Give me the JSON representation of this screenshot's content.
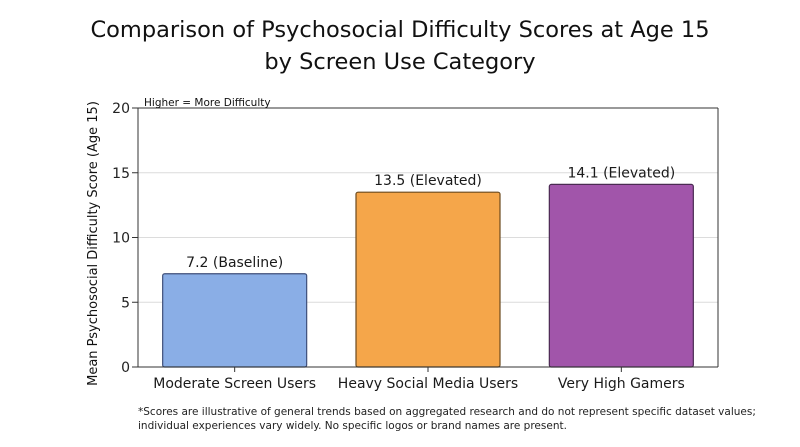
{
  "chart_data": {
    "type": "bar",
    "title_lines": [
      "Comparison of Psychosocial Difficulty Scores at Age 15",
      "by Screen Use Category"
    ],
    "xlabel": "",
    "ylabel": "Mean Psychosocial Difficulty Score (Age 15)",
    "ylim": [
      0,
      20
    ],
    "yticks": [
      0,
      5,
      10,
      15,
      20
    ],
    "grid": true,
    "annotation": "Higher = More Difficulty",
    "categories": [
      "Moderate Screen Users",
      "Heavy Social Media Users",
      "Very High Gamers"
    ],
    "values": [
      7.2,
      13.5,
      14.1
    ],
    "data_labels": [
      "7.2 (Baseline)",
      "13.5 (Elevated)",
      "14.1 (Elevated)"
    ],
    "colors": [
      "#8aaee6",
      "#f5a64a",
      "#a155aa"
    ],
    "edge_colors": [
      "#3e4f7a",
      "#6b4a1e",
      "#4a2a52"
    ],
    "footnote_lines": [
      "*Scores are illustrative of general trends based on aggregated research and do not represent specific dataset values;",
      "individual experiences vary widely. No specific logos or brand names are present."
    ]
  }
}
